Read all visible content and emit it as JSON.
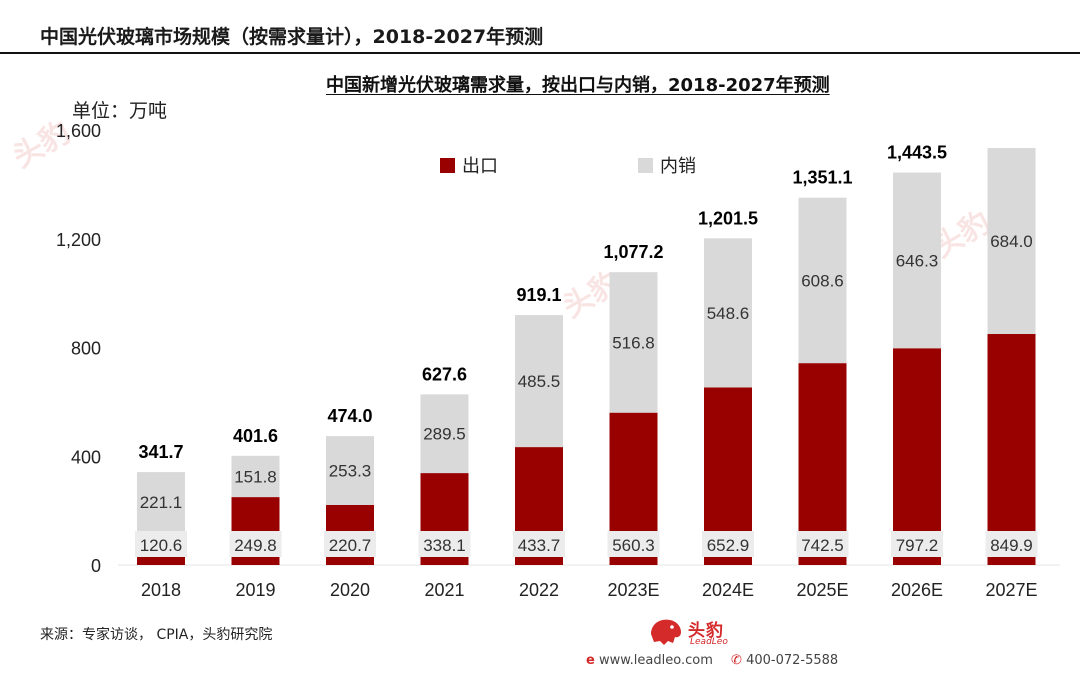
{
  "header": {
    "title": "中国光伏玻璃市场规模（按需求量计），2018-2027年预测"
  },
  "chart_data": {
    "type": "bar",
    "stacked": true,
    "title": "中国新增光伏玻璃需求量，按出口与内销，2018-2027年预测",
    "unit_label": "单位：万吨",
    "categories": [
      "2018",
      "2019",
      "2020",
      "2021",
      "2022",
      "2023E",
      "2024E",
      "2025E",
      "2026E",
      "2027E"
    ],
    "series": [
      {
        "name": "出口",
        "color": "#990000",
        "values": [
          120.6,
          249.8,
          220.7,
          338.1,
          433.7,
          560.3,
          652.9,
          742.5,
          797.2,
          849.9
        ]
      },
      {
        "name": "内销",
        "color": "#d9d9d9",
        "values": [
          221.1,
          151.8,
          253.3,
          289.5,
          485.5,
          516.8,
          548.6,
          608.6,
          646.3,
          684.0
        ]
      }
    ],
    "series_labels": [
      [
        "120.6",
        "249.8",
        "220.7",
        "338.1",
        "433.7",
        "560.3",
        "652.9",
        "742.5",
        "797.2",
        "849.9"
      ],
      [
        "221.1",
        "151.8",
        "253.3",
        "289.5",
        "485.5",
        "516.8",
        "548.6",
        "608.6",
        "646.3",
        "684.0"
      ]
    ],
    "totals": [
      341.7,
      401.6,
      474.0,
      627.6,
      919.1,
      1077.2,
      1201.5,
      1351.1,
      1443.5,
      1533.9
    ],
    "total_labels": [
      "341.7",
      "401.6",
      "474.0",
      "627.6",
      "919.1",
      "1,077.2",
      "1,201.5",
      "1,351.1",
      "1,443.5",
      ""
    ],
    "yticks": [
      0,
      400,
      800,
      1200,
      1600
    ],
    "ytick_labels": [
      "0",
      "400",
      "800",
      "1,200",
      "1,600"
    ],
    "ylim": [
      0,
      1600
    ],
    "legend_position": "top-center",
    "grid": false
  },
  "footer": {
    "source": "来源：专家访谈， CPIA，头豹研究院",
    "logo_text": "头豹",
    "logo_sub": "LeadLeo",
    "website": "www.leadleo.com",
    "phone": "400-072-5588"
  },
  "watermark_text": "头豹"
}
